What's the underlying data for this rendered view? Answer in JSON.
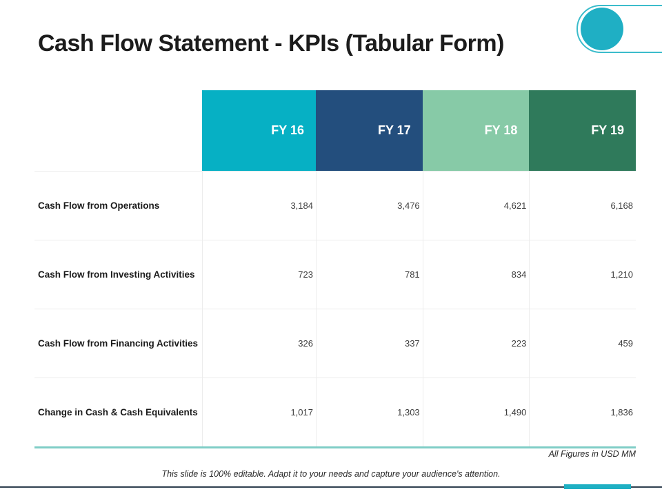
{
  "slide": {
    "title": "Cash Flow Statement - KPIs (Tabular Form)",
    "units_note": "All Figures in USD MM",
    "editable_note": "This slide is 100% editable. Adapt it to your needs and capture your audience's attention."
  },
  "chart_data": {
    "type": "table",
    "title": "Cash Flow Statement - KPIs (Tabular Form)",
    "units": "USD MM",
    "columns": [
      "FY 16",
      "FY 17",
      "FY 18",
      "FY 19"
    ],
    "rows": [
      {
        "label": "Cash Flow from Operations",
        "values": [
          "3,184",
          "3,476",
          "4,621",
          "6,168"
        ]
      },
      {
        "label": "Cash Flow from Investing Activities",
        "values": [
          "723",
          "781",
          "834",
          "1,210"
        ]
      },
      {
        "label": "Cash Flow from Financing Activities",
        "values": [
          "326",
          "337",
          "223",
          "459"
        ]
      },
      {
        "label": "Change in Cash & Cash Equivalents",
        "values": [
          "1,017",
          "1,303",
          "1,490",
          "1,836"
        ]
      }
    ],
    "header_colors": [
      "#06b0c4",
      "#234e7d",
      "#87caa7",
      "#2f7a5b"
    ]
  },
  "colors": {
    "accent_teal": "#1fafc4",
    "pill_outline": "#3bbccb",
    "row_divider": "#ececec",
    "table_bottom_border": "#7fcdc6",
    "footer_line_navy": "#2e3f4f",
    "footer_accent_teal": "#1fb0c3"
  }
}
